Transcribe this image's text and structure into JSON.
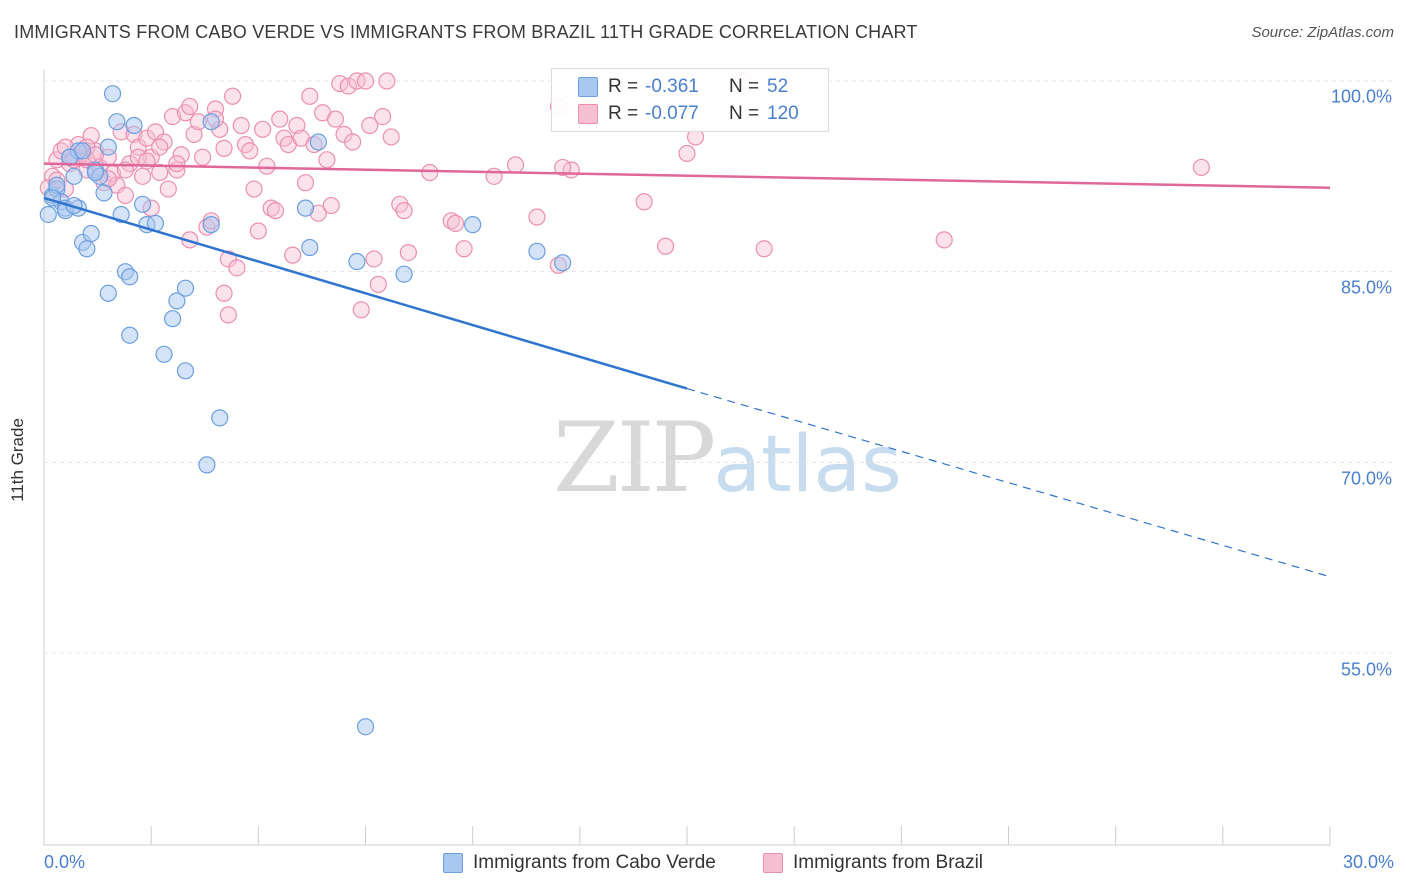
{
  "title": "IMMIGRANTS FROM CABO VERDE VS IMMIGRANTS FROM BRAZIL 11TH GRADE CORRELATION CHART",
  "source": "Source: ZipAtlas.com",
  "watermark": {
    "zip": "ZIP",
    "atlas": "atlas"
  },
  "legend": {
    "cabo": {
      "r_label": "R =",
      "r_value": "-0.361",
      "n_label": "N =",
      "n_value": "52"
    },
    "brazil": {
      "r_label": "R =",
      "r_value": "-0.077",
      "n_label": "N =",
      "n_value": "120"
    }
  },
  "colors": {
    "cabo_fill": "#a9c8f0",
    "cabo_stroke": "#6b9fe0",
    "cabo_line": "#2f75d0",
    "brazil_fill": "#f6bfd2",
    "brazil_stroke": "#ec8fb1",
    "brazil_line": "#e0679a",
    "grid": "#e4e4e4",
    "axis_text": "#4a7fcf"
  },
  "chart_data": {
    "type": "scatter",
    "title": "IMMIGRANTS FROM CABO VERDE VS IMMIGRANTS FROM BRAZIL 11TH GRADE CORRELATION CHART",
    "xlabel": "",
    "ylabel": "11th Grade",
    "xlim": [
      0,
      30
    ],
    "ylim": [
      40,
      102
    ],
    "x_tick_labels": [
      "0.0%",
      "30.0%"
    ],
    "y_ticks": [
      100,
      85,
      70,
      55
    ],
    "y_tick_labels": [
      "100.0%",
      "85.0%",
      "70.0%",
      "55.0%"
    ],
    "grid": true,
    "legend_position": "bottom",
    "series": [
      {
        "name": "Immigrants from Cabo Verde",
        "trend": {
          "x": [
            0,
            15
          ],
          "y": [
            90.8,
            75.8
          ],
          "dashed_to": [
            30,
            61.0
          ]
        },
        "points": [
          [
            0.1,
            89.5
          ],
          [
            0.2,
            91.0
          ],
          [
            0.3,
            91.5
          ],
          [
            0.4,
            90.5
          ],
          [
            0.5,
            90.0
          ],
          [
            0.6,
            94.0
          ],
          [
            0.7,
            92.5
          ],
          [
            0.8,
            94.5
          ],
          [
            0.8,
            90.0
          ],
          [
            0.9,
            87.3
          ],
          [
            1.0,
            86.8
          ],
          [
            1.1,
            88.0
          ],
          [
            1.2,
            93.0
          ],
          [
            1.3,
            92.5
          ],
          [
            1.4,
            91.2
          ],
          [
            1.5,
            94.8
          ],
          [
            1.5,
            83.3
          ],
          [
            1.6,
            99.0
          ],
          [
            1.7,
            96.8
          ],
          [
            1.8,
            89.5
          ],
          [
            1.9,
            85.0
          ],
          [
            2.0,
            84.6
          ],
          [
            2.0,
            80.0
          ],
          [
            2.1,
            96.5
          ],
          [
            2.3,
            90.3
          ],
          [
            2.4,
            88.7
          ],
          [
            2.6,
            88.8
          ],
          [
            2.8,
            78.5
          ],
          [
            3.0,
            81.3
          ],
          [
            3.1,
            82.7
          ],
          [
            3.3,
            77.2
          ],
          [
            3.3,
            83.7
          ],
          [
            3.8,
            69.8
          ],
          [
            3.9,
            96.8
          ],
          [
            3.9,
            88.7
          ],
          [
            4.1,
            73.5
          ],
          [
            6.1,
            90.0
          ],
          [
            6.2,
            86.9
          ],
          [
            6.4,
            95.2
          ],
          [
            7.3,
            85.8
          ],
          [
            7.5,
            49.2
          ],
          [
            8.4,
            84.8
          ],
          [
            10.0,
            88.7
          ],
          [
            11.5,
            86.6
          ],
          [
            12.1,
            85.7
          ],
          [
            0.3,
            91.8
          ],
          [
            0.6,
            94.0
          ],
          [
            0.9,
            94.5
          ],
          [
            1.2,
            92.8
          ],
          [
            0.5,
            89.8
          ],
          [
            0.2,
            90.8
          ],
          [
            0.7,
            90.2
          ]
        ]
      },
      {
        "name": "Immigrants from Brazil",
        "trend": {
          "x": [
            0,
            30
          ],
          "y": [
            93.5,
            91.6
          ]
        },
        "points": [
          [
            0.2,
            92.5
          ],
          [
            0.3,
            93.8
          ],
          [
            0.4,
            94.5
          ],
          [
            0.5,
            91.5
          ],
          [
            0.6,
            93.5
          ],
          [
            0.7,
            94.0
          ],
          [
            0.8,
            95.0
          ],
          [
            0.9,
            94.3
          ],
          [
            1.0,
            93.0
          ],
          [
            1.1,
            95.7
          ],
          [
            1.2,
            94.5
          ],
          [
            1.3,
            93.2
          ],
          [
            1.4,
            92.0
          ],
          [
            1.5,
            94.0
          ],
          [
            1.6,
            92.7
          ],
          [
            1.7,
            91.8
          ],
          [
            1.8,
            96.0
          ],
          [
            1.9,
            91.0
          ],
          [
            2.0,
            93.5
          ],
          [
            2.1,
            95.8
          ],
          [
            2.2,
            94.8
          ],
          [
            2.3,
            92.5
          ],
          [
            2.4,
            95.5
          ],
          [
            2.5,
            94.0
          ],
          [
            2.6,
            96.0
          ],
          [
            2.7,
            92.8
          ],
          [
            2.8,
            95.2
          ],
          [
            2.9,
            91.5
          ],
          [
            3.0,
            97.2
          ],
          [
            3.1,
            93.0
          ],
          [
            3.2,
            94.2
          ],
          [
            3.3,
            97.5
          ],
          [
            3.4,
            98.0
          ],
          [
            3.5,
            95.8
          ],
          [
            3.6,
            96.8
          ],
          [
            3.7,
            94.0
          ],
          [
            3.8,
            88.5
          ],
          [
            3.9,
            89.0
          ],
          [
            4.0,
            97.8
          ],
          [
            4.1,
            96.2
          ],
          [
            4.2,
            94.7
          ],
          [
            4.3,
            86.0
          ],
          [
            4.4,
            98.8
          ],
          [
            4.5,
            85.3
          ],
          [
            4.6,
            96.5
          ],
          [
            4.7,
            95.0
          ],
          [
            4.8,
            94.5
          ],
          [
            4.9,
            91.5
          ],
          [
            5.0,
            88.2
          ],
          [
            5.1,
            96.2
          ],
          [
            5.2,
            93.3
          ],
          [
            5.3,
            90.0
          ],
          [
            5.4,
            89.8
          ],
          [
            5.5,
            97.0
          ],
          [
            5.6,
            95.5
          ],
          [
            5.7,
            95.0
          ],
          [
            5.8,
            86.3
          ],
          [
            5.9,
            96.5
          ],
          [
            6.0,
            95.5
          ],
          [
            6.1,
            92.0
          ],
          [
            6.2,
            98.8
          ],
          [
            6.3,
            95.0
          ],
          [
            6.4,
            89.6
          ],
          [
            6.5,
            97.5
          ],
          [
            6.6,
            93.8
          ],
          [
            6.7,
            90.2
          ],
          [
            6.8,
            97.0
          ],
          [
            6.9,
            99.8
          ],
          [
            7.0,
            95.8
          ],
          [
            7.1,
            99.6
          ],
          [
            7.2,
            95.2
          ],
          [
            7.3,
            100.0
          ],
          [
            7.4,
            82.0
          ],
          [
            7.5,
            100.0
          ],
          [
            7.6,
            96.5
          ],
          [
            7.7,
            86.0
          ],
          [
            7.8,
            84.0
          ],
          [
            7.9,
            97.2
          ],
          [
            8.0,
            100.0
          ],
          [
            8.1,
            95.6
          ],
          [
            8.3,
            90.3
          ],
          [
            8.4,
            89.8
          ],
          [
            8.5,
            86.5
          ],
          [
            9.0,
            92.8
          ],
          [
            9.5,
            89.0
          ],
          [
            9.6,
            88.8
          ],
          [
            9.8,
            86.8
          ],
          [
            10.5,
            92.5
          ],
          [
            11.0,
            93.4
          ],
          [
            11.5,
            89.3
          ],
          [
            12.0,
            98.0
          ],
          [
            12.0,
            85.5
          ],
          [
            12.3,
            93.0
          ],
          [
            14.0,
            90.5
          ],
          [
            14.5,
            87.0
          ],
          [
            15.0,
            94.3
          ],
          [
            15.2,
            95.6
          ],
          [
            16.3,
            100.0
          ],
          [
            16.8,
            86.8
          ],
          [
            21.0,
            87.5
          ],
          [
            27.0,
            93.2
          ],
          [
            1.0,
            94.8
          ],
          [
            2.5,
            90.0
          ],
          [
            3.4,
            87.5
          ],
          [
            0.1,
            91.6
          ],
          [
            0.3,
            92.2
          ],
          [
            0.5,
            94.8
          ],
          [
            0.7,
            93.8
          ],
          [
            1.0,
            93.8
          ],
          [
            1.2,
            94.2
          ],
          [
            1.5,
            92.3
          ],
          [
            1.9,
            93.0
          ],
          [
            2.2,
            94.0
          ],
          [
            2.4,
            93.7
          ],
          [
            2.7,
            94.8
          ],
          [
            3.1,
            93.5
          ],
          [
            4.0,
            97.0
          ],
          [
            4.2,
            83.3
          ],
          [
            4.3,
            81.6
          ],
          [
            12.1,
            93.2
          ]
        ]
      }
    ]
  },
  "bottom_legend": {
    "cabo": "Immigrants from Cabo Verde",
    "brazil": "Immigrants from Brazil"
  }
}
